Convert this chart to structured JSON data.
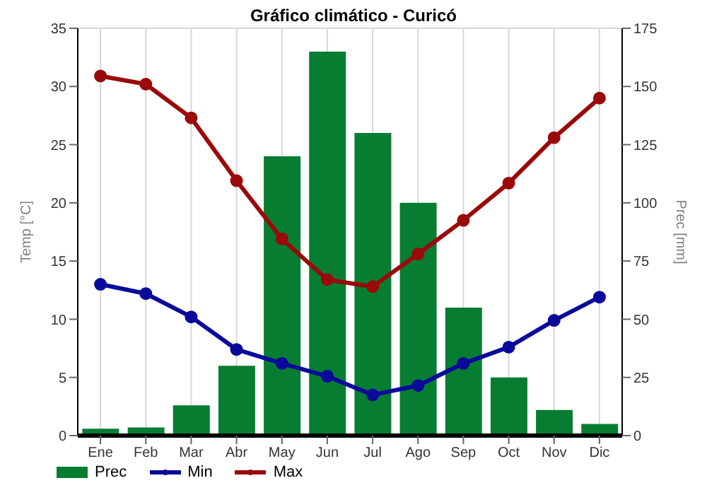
{
  "chart_data": {
    "type": "bar",
    "title": "Gráfico climático - Curicó",
    "ylabel": "Temp [°C]",
    "y2label": "Prec [mm]",
    "categories": [
      "Ene",
      "Feb",
      "Mar",
      "Abr",
      "May",
      "Jun",
      "Jul",
      "Ago",
      "Sep",
      "Oct",
      "Nov",
      "Dic"
    ],
    "series": [
      {
        "name": "Prec",
        "axis": "y2",
        "color": "#077d32",
        "values": [
          3,
          3.5,
          13,
          30,
          120,
          165,
          130,
          100,
          55,
          25,
          11,
          5
        ]
      },
      {
        "name": "Min",
        "type": "line",
        "color": "#0a0a9a",
        "values": [
          13,
          12.2,
          10.2,
          7.4,
          6.2,
          5.1,
          3.5,
          4.3,
          6.2,
          7.6,
          9.9,
          11.9
        ]
      },
      {
        "name": "Max",
        "type": "line",
        "color": "#9a0a0a",
        "values": [
          30.9,
          30.2,
          27.3,
          21.9,
          16.9,
          13.4,
          12.8,
          15.6,
          18.5,
          21.7,
          25.6,
          29.0
        ]
      }
    ],
    "ylim": [
      0,
      35
    ],
    "yticks": [
      0,
      5,
      10,
      15,
      20,
      25,
      30,
      35
    ],
    "y2lim": [
      0,
      175
    ],
    "y2ticks": [
      0,
      25,
      50,
      75,
      100,
      125,
      150,
      175
    ],
    "grid": true,
    "legend": "bottom",
    "marker": "circle"
  }
}
